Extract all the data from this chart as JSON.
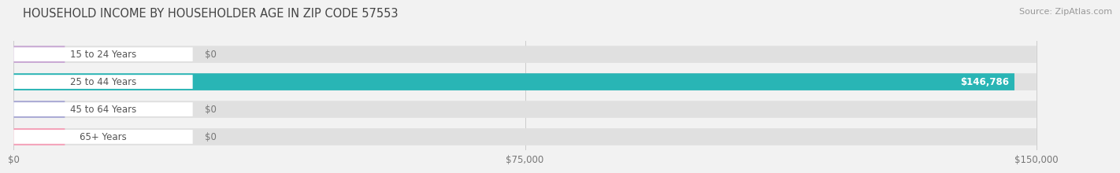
{
  "title": "HOUSEHOLD INCOME BY HOUSEHOLDER AGE IN ZIP CODE 57553",
  "source": "Source: ZipAtlas.com",
  "categories": [
    "15 to 24 Years",
    "25 to 44 Years",
    "45 to 64 Years",
    "65+ Years"
  ],
  "values": [
    0,
    146786,
    0,
    0
  ],
  "bar_colors": [
    "#c9a8d4",
    "#29b5b5",
    "#a8a8d4",
    "#f5a0b8"
  ],
  "value_labels": [
    "$0",
    "$146,786",
    "$0",
    "$0"
  ],
  "xlim": [
    0,
    160000
  ],
  "max_val": 150000,
  "xticks": [
    0,
    75000,
    150000
  ],
  "xticklabels": [
    "$0",
    "$75,000",
    "$150,000"
  ],
  "background_color": "#f2f2f2",
  "bar_bg_color": "#e0e0e0",
  "title_fontsize": 10.5,
  "source_fontsize": 8,
  "label_fontsize": 8.5,
  "tick_fontsize": 8.5
}
